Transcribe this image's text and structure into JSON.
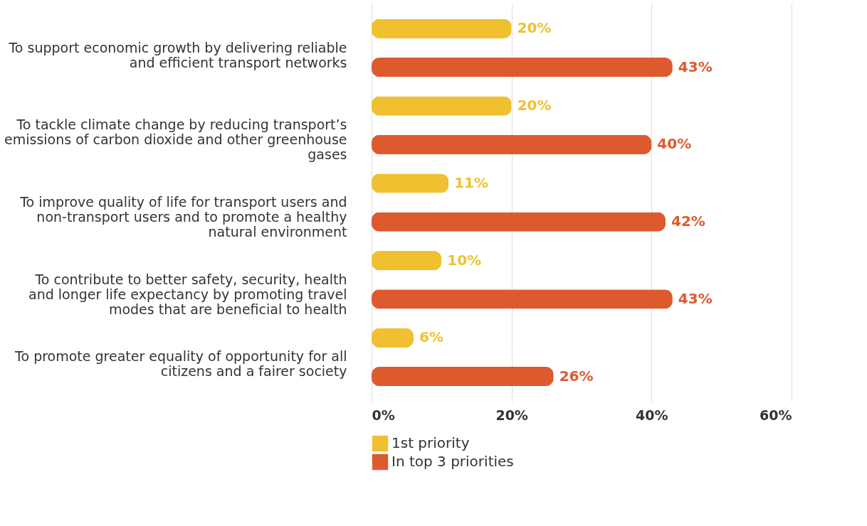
{
  "chart_data": {
    "type": "bar",
    "orientation": "horizontal",
    "categories": [
      "To support economic growth by delivering reliable and efficient transport networks",
      "To tackle climate change by reducing transport’s emissions of carbon dioxide and other greenhouse gases",
      "To improve quality of life for transport users and non-transport users and to promote a healthy natural environment",
      "To contribute to better safety, security, health and longer life expectancy by promoting travel modes that are beneficial to health",
      "To promote greater equality of opportunity for all citizens and a fairer society"
    ],
    "series": [
      {
        "name": "1st priority",
        "color": "#f0c030",
        "values": [
          20,
          20,
          11,
          10,
          6
        ],
        "value_labels": [
          "20%",
          "20%",
          "11%",
          "10%",
          "6%"
        ]
      },
      {
        "name": "In top 3 priorities",
        "color": "#dd5a2f",
        "values": [
          43,
          40,
          42,
          43,
          26
        ],
        "value_labels": [
          "43%",
          "40%",
          "42%",
          "43%",
          "26%"
        ]
      }
    ],
    "xlim": [
      0,
      60
    ],
    "xticks": [
      {
        "value": 0,
        "label": "0%"
      },
      {
        "value": 20,
        "label": "20%"
      },
      {
        "value": 40,
        "label": "40%"
      },
      {
        "value": 60,
        "label": "60%"
      }
    ],
    "grid": "x",
    "legend": "bottom"
  }
}
